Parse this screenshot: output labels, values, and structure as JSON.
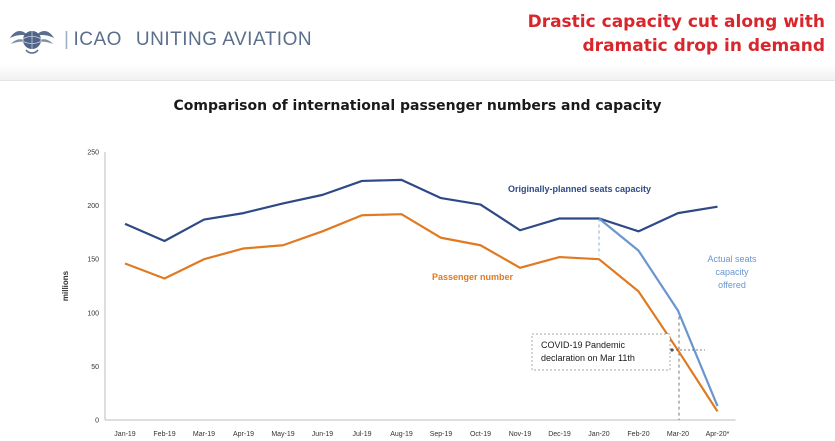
{
  "header": {
    "org": "ICAO",
    "tagline": "UNITING AVIATION",
    "headline_line1": "Drastic capacity cut along with",
    "headline_line2": "dramatic drop in demand",
    "brand_color": "#5b6f8c",
    "headline_color": "#d8262c",
    "logo_icon": "icao-emblem-icon"
  },
  "chart_data": {
    "type": "line",
    "title": "Comparison of international passenger numbers and capacity",
    "xlabel": "",
    "ylabel": "millions",
    "ylim": [
      0,
      250
    ],
    "yticks": [
      0,
      50,
      100,
      150,
      200,
      250
    ],
    "grid": false,
    "categories": [
      "Jan-19",
      "Feb-19",
      "Mar-19",
      "Apr-19",
      "May-19",
      "Jun-19",
      "Jul-19",
      "Aug-19",
      "Sep-19",
      "Oct-19",
      "Nov-19",
      "Dec-19",
      "Jan-20",
      "Feb-20",
      "Mar-20",
      "Apr-20*"
    ],
    "series": [
      {
        "name": "Originally-planned seats capacity",
        "color": "#2e4a86",
        "values": [
          183,
          167,
          187,
          193,
          202,
          210,
          223,
          224,
          207,
          201,
          177,
          188,
          188,
          176,
          193,
          199
        ]
      },
      {
        "name": "Actual seats capacity offered",
        "color": "#6a96cf",
        "values": [
          null,
          null,
          null,
          null,
          null,
          null,
          null,
          null,
          null,
          null,
          null,
          null,
          188,
          158,
          102,
          13
        ]
      },
      {
        "name": "Passenger number",
        "color": "#e07a22",
        "values": [
          146,
          132,
          150,
          160,
          163,
          176,
          191,
          192,
          170,
          163,
          142,
          152,
          150,
          120,
          65,
          8
        ]
      }
    ],
    "annotations": {
      "planned_label": "Originally-planned seats capacity",
      "actual_label_lines": [
        "Actual seats",
        "capacity",
        "offered"
      ],
      "passenger_label": "Passenger number",
      "covid_lines": [
        "COVID-19 Pandemic",
        "declaration on Mar 11th"
      ]
    }
  }
}
